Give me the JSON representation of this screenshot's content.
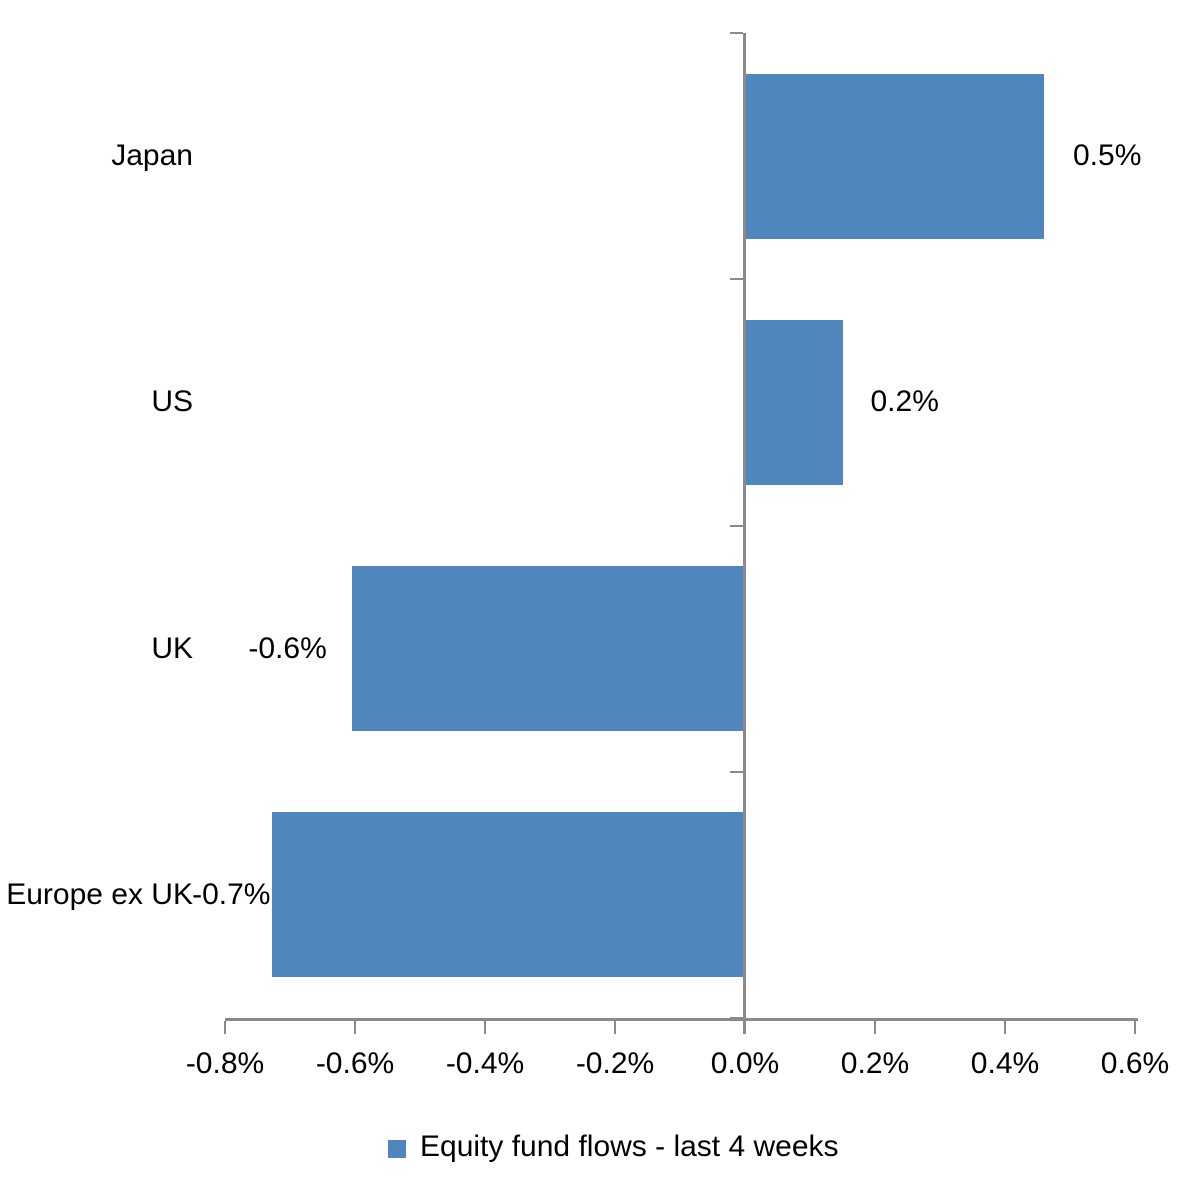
{
  "chart_data": {
    "type": "bar",
    "orientation": "horizontal",
    "title": "",
    "xlabel": "",
    "ylabel": "",
    "grid": false,
    "categories": [
      "Japan",
      "US",
      "UK",
      "Europe ex UK"
    ],
    "series": [
      {
        "name": "Equity fund flows - last 4 weeks",
        "values": [
          0.46,
          0.15,
          -0.605,
          -0.727
        ],
        "data_labels": [
          "0.5%",
          "0.2%",
          "-0.6%",
          "-0.7%"
        ],
        "color": "#4F86BD"
      }
    ],
    "x_axis": {
      "min": -0.8,
      "max": 0.6,
      "step": 0.2,
      "unit": "%",
      "tick_labels": [
        "-0.8%",
        "-0.6%",
        "-0.4%",
        "-0.2%",
        "0.0%",
        "0.2%",
        "0.4%",
        "0.6%"
      ]
    },
    "legend": {
      "position": "bottom",
      "entries": [
        {
          "label": "Equity fund flows - last 4 weeks",
          "color": "#4F86BD"
        }
      ]
    },
    "colors": {
      "bar_fill": "#4F86BD",
      "axis": "#8A8A8A",
      "text": "#000000",
      "background": "#FFFFFF"
    }
  }
}
